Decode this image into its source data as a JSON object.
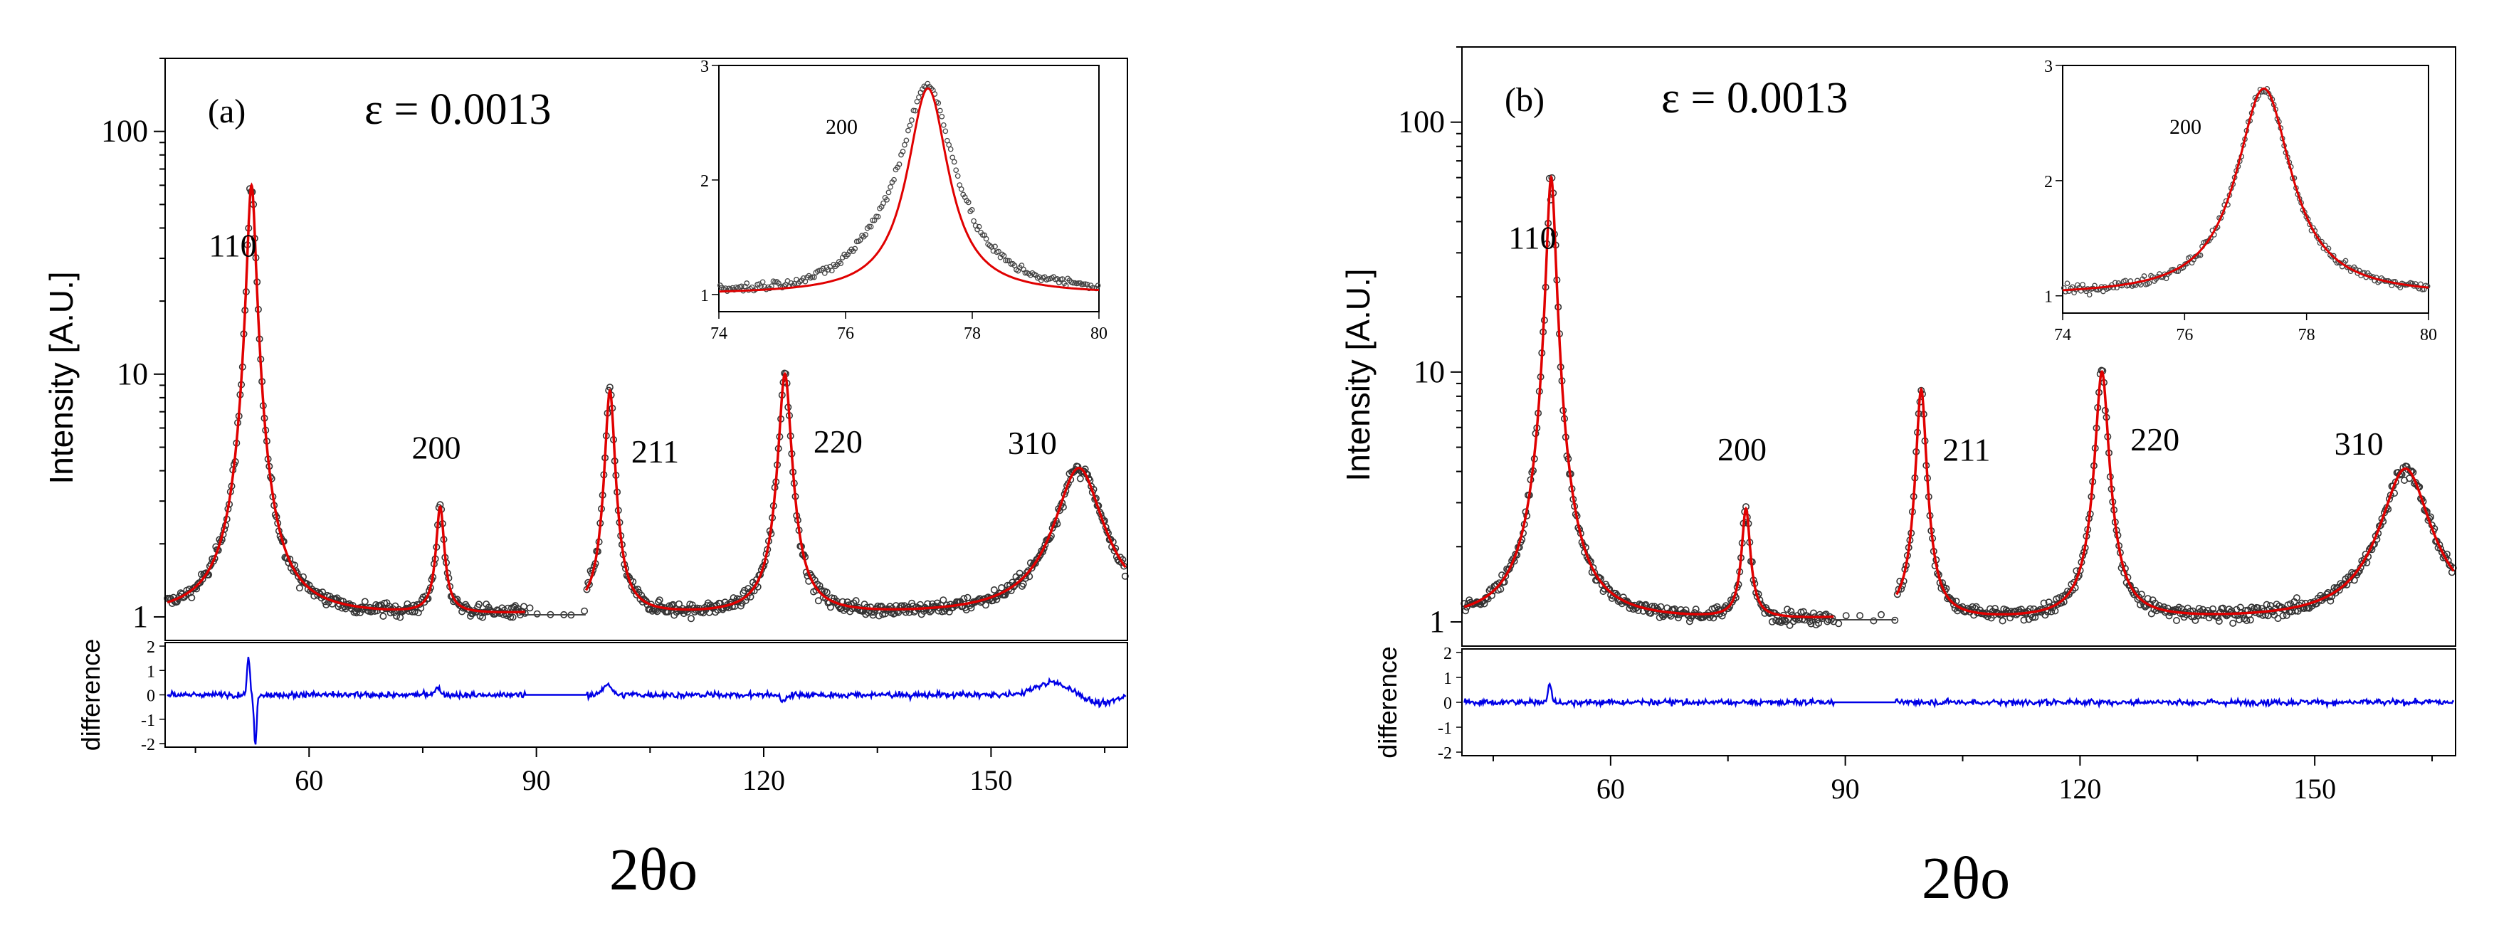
{
  "chart_data": [
    {
      "panel": "(a)",
      "type": "scatter",
      "annotation": "ε = 0.0013",
      "xlabel": "2θo",
      "ylabel": "Intensity [A.U.]",
      "diff_label": "difference",
      "xlim": [
        41,
        168
      ],
      "ylim": [
        0.8,
        200
      ],
      "yscale": "log",
      "diff_ylim": [
        -2,
        2
      ],
      "x_ticks": [
        "60",
        "90",
        "120",
        "150"
      ],
      "y_ticks": [
        "1",
        "10",
        "100"
      ],
      "diff_ticks": [
        "2",
        "1",
        "0",
        "-1",
        "-2"
      ],
      "peaks": [
        {
          "label": "110",
          "x": 52.4,
          "y": 60,
          "w": 0.55
        },
        {
          "label": "200",
          "x": 77.3,
          "y": 2.8,
          "w": 0.55
        },
        {
          "label": "211",
          "x": 99.7,
          "y": 8.5,
          "w": 0.6
        },
        {
          "label": "220",
          "x": 122.8,
          "y": 10,
          "w": 0.75
        },
        {
          "label": "310",
          "x": 161.6,
          "y": 4.1,
          "w": 3.0
        }
      ],
      "gap": [
        88.5,
        96.5
      ],
      "data_color": "#333333",
      "fit_color": "#e00000",
      "diff_color": "#0000e6",
      "inset": {
        "label": "200",
        "xlim": [
          74,
          80
        ],
        "ylim": [
          0.85,
          3
        ],
        "x_ticks": [
          "74",
          "76",
          "78",
          "80"
        ],
        "y_ticks": [
          "1",
          "2",
          "3"
        ],
        "peak_x": 77.3,
        "peak_y": 2.8,
        "fit_width": 0.4,
        "data_width": 0.55
      }
    },
    {
      "panel": "(b)",
      "type": "scatter",
      "annotation": "ε = 0.0013",
      "xlabel": "2θo",
      "ylabel": "Intensity [A.U.]",
      "diff_label": "difference",
      "xlim": [
        41,
        168
      ],
      "ylim": [
        0.8,
        200
      ],
      "yscale": "log",
      "diff_ylim": [
        -2,
        2
      ],
      "x_ticks": [
        "60",
        "90",
        "120",
        "150"
      ],
      "y_ticks": [
        "1",
        "10",
        "100"
      ],
      "diff_ticks": [
        "2",
        "1",
        "0",
        "-1",
        "-2"
      ],
      "peaks": [
        {
          "label": "110",
          "x": 52.4,
          "y": 60,
          "w": 0.55
        },
        {
          "label": "200",
          "x": 77.3,
          "y": 2.8,
          "w": 0.55
        },
        {
          "label": "211",
          "x": 99.7,
          "y": 8.5,
          "w": 0.6
        },
        {
          "label": "220",
          "x": 122.8,
          "y": 10,
          "w": 0.75
        },
        {
          "label": "310",
          "x": 161.6,
          "y": 4.1,
          "w": 3.0
        }
      ],
      "gap": [
        88.5,
        96.5
      ],
      "data_color": "#333333",
      "fit_color": "#e00000",
      "diff_color": "#0000e6",
      "inset": {
        "label": "200",
        "xlim": [
          74,
          80
        ],
        "ylim": [
          0.85,
          3
        ],
        "x_ticks": [
          "74",
          "76",
          "78",
          "80"
        ],
        "y_ticks": [
          "1",
          "2",
          "3"
        ],
        "peak_x": 77.3,
        "peak_y": 2.8,
        "fit_width": 0.55,
        "data_width": 0.55
      }
    }
  ]
}
